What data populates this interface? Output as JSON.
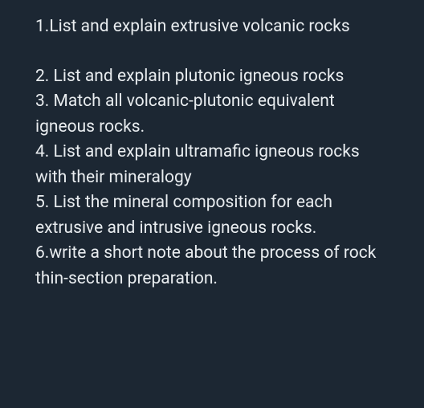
{
  "background_color": "#1c2733",
  "text_color": "#e8ecef",
  "font_size": 21,
  "line_height": 1.5,
  "items": [
    {
      "text": "1.List and explain extrusive volcanic rocks",
      "spacer_after": true
    },
    {
      "text": "2. List and explain  plutonic igneous rocks",
      "spacer_after": false
    },
    {
      "text": "3. Match all volcanic-plutonic equivalent igneous rocks.",
      "spacer_after": false
    },
    {
      "text": "4. List and explain ultramafic igneous rocks with their mineralogy",
      "spacer_after": false
    },
    {
      "text": "5. List the mineral composition for each extrusive and intrusive igneous rocks.",
      "spacer_after": false
    },
    {
      "text": "6.write a short note about the process of rock thin-section preparation.",
      "spacer_after": false
    }
  ]
}
